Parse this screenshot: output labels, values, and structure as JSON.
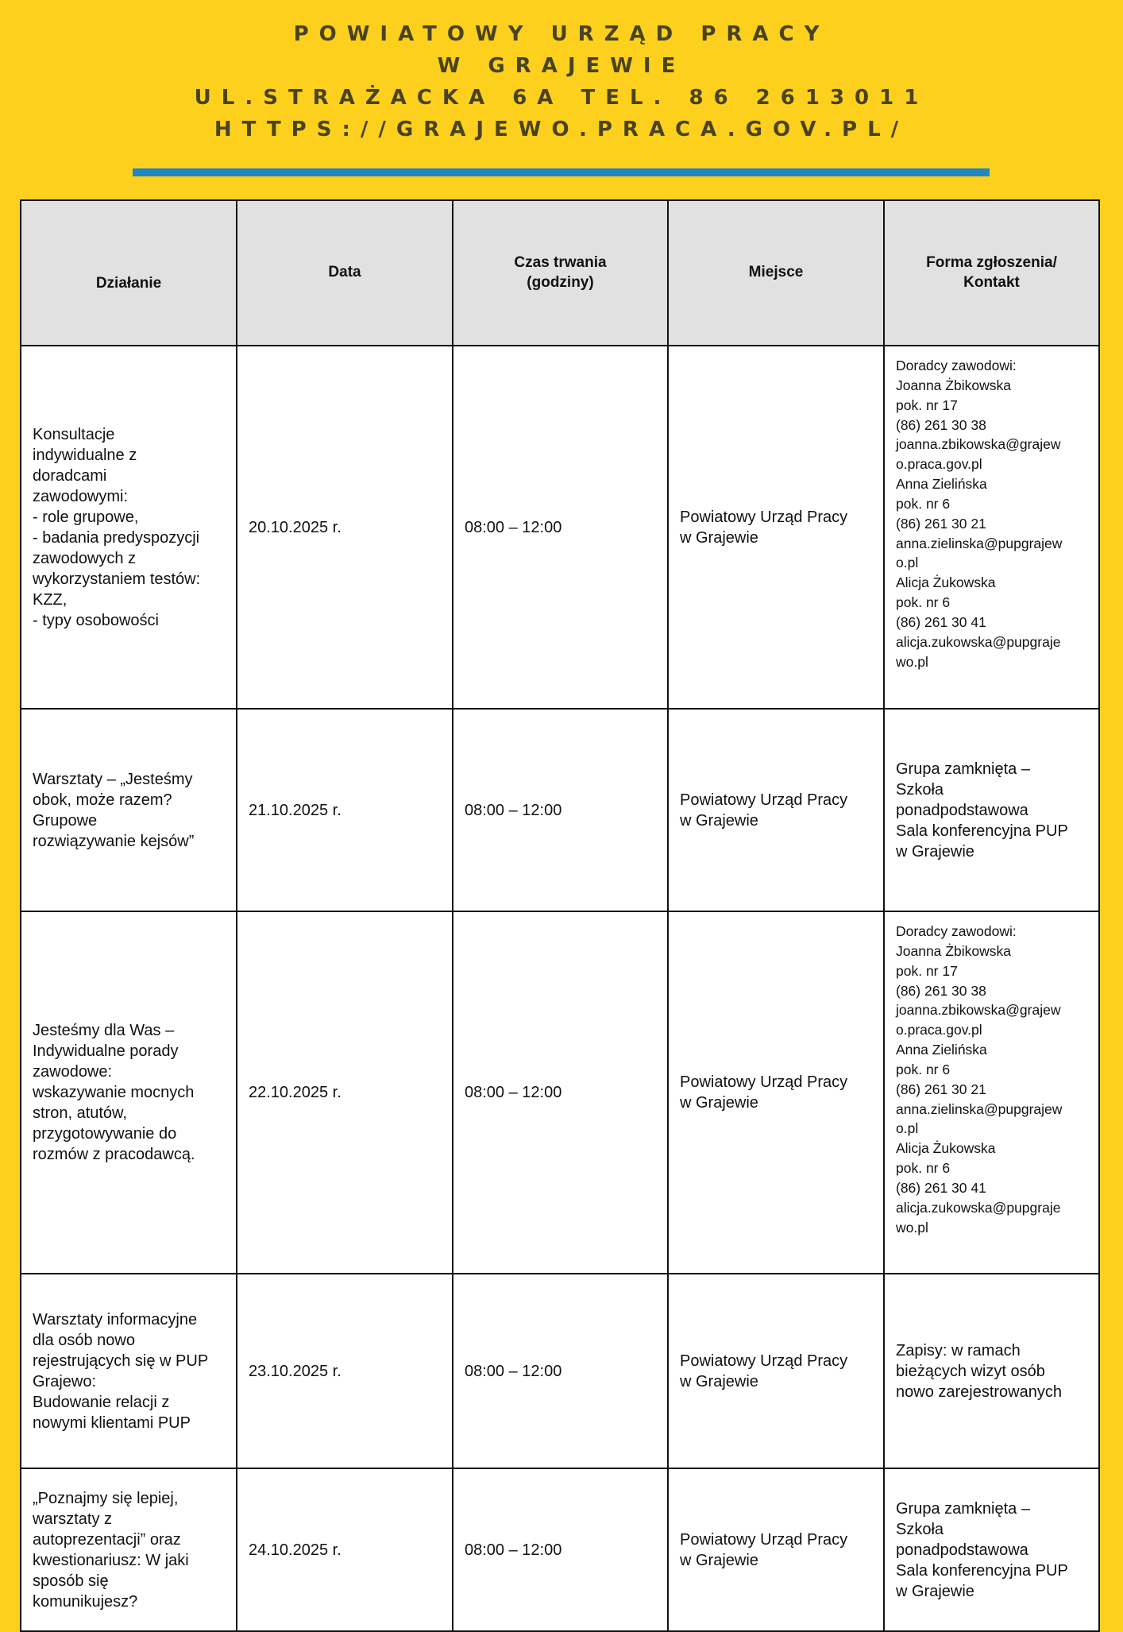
{
  "header": {
    "lines": [
      "POWIATOWY URZĄD PRACY",
      "W GRAJEWIE",
      "UL.STRAŻACKA 6A TEL. 86 2613011",
      "HTTPS://GRAJEWO.PRACA.GOV.PL/"
    ],
    "accent_color": "#1f88c4",
    "background_color": "#fcd01d"
  },
  "table": {
    "columns": [
      "Działanie",
      "Data",
      "Czas trwania\n(godziny)",
      "Miejsce",
      "Forma zgłoszenia/\nKontakt"
    ],
    "rows": [
      {
        "dzialanie": "Konsultacje\nindywidualne z\ndoradcami\nzawodowymi:\n- role grupowe,\n- badania predyspozycji\nzawodowych z\nwykorzystaniem testów:\nKZZ,\n - typy osobowości",
        "data": "20.10.2025 r.",
        "czas": "08:00 – 12:00",
        "miejsce": "Powiatowy Urząd Pracy\n w Grajewie",
        "kontakt": "Doradcy zawodowi:\nJoanna Żbikowska\npok. nr 17\n(86) 261 30 38\njoanna.zbikowska@grajew\no.praca.gov.pl\nAnna Zielińska\npok. nr 6\n(86) 261 30 21\nanna.zielinska@pupgrajew\no.pl\nAlicja Żukowska\npok. nr 6\n(86) 261 30 41\nalicja.zukowska@pupgraje\nwo.pl"
      },
      {
        "dzialanie": "Warsztaty – „Jesteśmy\nobok, może razem?\nGrupowe\nrozwiązywanie kejsów”",
        "data": "21.10.2025 r.",
        "czas": "08:00 – 12:00",
        "miejsce": "Powiatowy Urząd Pracy\n w Grajewie",
        "kontakt": "Grupa zamknięta –\nSzkoła\nponadpodstawowa\nSala konferencyjna PUP\nw Grajewie"
      },
      {
        "dzialanie": "Jesteśmy dla Was –\nIndywidualne porady\nzawodowe:\nwskazywanie mocnych\nstron, atutów,\nprzygotowywanie do\nrozmów z pracodawcą.",
        "data": "22.10.2025 r.",
        "czas": "08:00 – 12:00",
        "miejsce": "Powiatowy Urząd Pracy\n w Grajewie",
        "kontakt": "Doradcy zawodowi:\nJoanna Żbikowska\npok. nr 17\n(86) 261 30 38\njoanna.zbikowska@grajew\no.praca.gov.pl\nAnna Zielińska\npok. nr 6\n(86) 261 30 21\nanna.zielinska@pupgrajew\no.pl\nAlicja Żukowska\npok. nr 6\n(86) 261 30 41\nalicja.zukowska@pupgraje\nwo.pl"
      },
      {
        "dzialanie": "Warsztaty informacyjne\ndla osób nowo\nrejestrujących się w PUP\nGrajewo:\nBudowanie relacji z\nnowymi klientami PUP",
        "data": "23.10.2025 r.",
        "czas": "08:00 – 12:00",
        "miejsce": "Powiatowy Urząd Pracy\n w Grajewie",
        "kontakt": "Zapisy: w ramach\nbieżących wizyt osób\nnowo zarejestrowanych"
      },
      {
        "dzialanie": " „Poznajmy się lepiej,\nwarsztaty z\nautoprezentacji” oraz\nkwestionariusz: W jaki\nsposób się\nkomunikujesz?",
        "data": "24.10.2025 r.",
        "czas": "08:00 – 12:00",
        "miejsce": "Powiatowy Urząd Pracy\n w Grajewie",
        "kontakt": "Grupa zamknięta –\nSzkoła\nponadpodstawowa\nSala konferencyjna PUP\nw Grajewie"
      }
    ]
  }
}
